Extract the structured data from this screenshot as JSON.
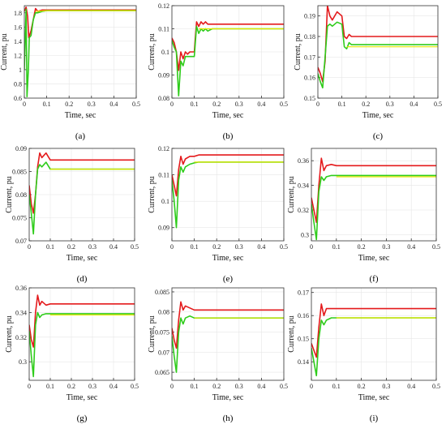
{
  "figure": {
    "panels": [
      {
        "label": "(a)",
        "xlabel": "Time, sec",
        "ylabel": "Current, pu"
      },
      {
        "label": "(b)",
        "xlabel": "Time, sec",
        "ylabel": "Current, pu"
      },
      {
        "label": "(c)",
        "xlabel": "Time, sec",
        "ylabel": "Current, pu"
      },
      {
        "label": "(d)",
        "xlabel": "Time, sec",
        "ylabel": "Current, pu"
      },
      {
        "label": "(e)",
        "xlabel": "Time, sec",
        "ylabel": "Current, pu"
      },
      {
        "label": "(f)",
        "xlabel": "Time, sec",
        "ylabel": "Current, pu"
      },
      {
        "label": "(g)",
        "xlabel": "Time, sec",
        "ylabel": "Current, pu"
      },
      {
        "label": "(h)",
        "xlabel": "Time, sec",
        "ylabel": "Current, pu"
      },
      {
        "label": "(i)",
        "xlabel": "Time, sec",
        "ylabel": "Current, pu"
      }
    ]
  },
  "colors": {
    "red": "#e41a1c",
    "green": "#2ecc1a",
    "yellow": "#e6e600",
    "axis": "#333333",
    "grid": "#e6e6e6"
  },
  "chart_data": [
    {
      "type": "line",
      "panel": "a",
      "xlabel": "Time, sec",
      "ylabel": "Current, pu",
      "xlim": [
        0,
        0.5
      ],
      "ylim": [
        0.6,
        1.9
      ],
      "xticks": [
        "0",
        "0.1",
        "0.2",
        "0.3",
        "0.4",
        "0.5"
      ],
      "yticks": [
        "0.6",
        "0.8",
        "1",
        "1.2",
        "1.4",
        "1.6",
        "1.8"
      ],
      "series": [
        {
          "color": "red",
          "x": [
            0,
            0.008,
            0.015,
            0.02,
            0.03,
            0.04,
            0.05,
            0.06,
            0.08,
            0.1,
            0.12,
            0.15,
            0.5
          ],
          "y": [
            1.82,
            1.88,
            1.75,
            1.45,
            1.55,
            1.7,
            1.86,
            1.82,
            1.84,
            1.84,
            1.84,
            1.84,
            1.84
          ]
        },
        {
          "color": "green",
          "x": [
            0,
            0.008,
            0.012,
            0.018,
            0.022,
            0.03,
            0.04,
            0.05,
            0.06,
            0.08,
            0.1,
            0.15,
            0.5
          ],
          "y": [
            1.0,
            1.85,
            0.62,
            1.0,
            1.45,
            1.48,
            1.7,
            1.8,
            1.8,
            1.82,
            1.83,
            1.83,
            1.83
          ]
        },
        {
          "color": "yellow",
          "x": [
            0.05,
            0.1,
            0.2,
            0.3,
            0.4,
            0.5
          ],
          "y": [
            1.82,
            1.83,
            1.83,
            1.83,
            1.83,
            1.83
          ]
        }
      ]
    },
    {
      "type": "line",
      "panel": "b",
      "xlabel": "Time, sec",
      "ylabel": "Current, pu",
      "xlim": [
        0,
        0.5
      ],
      "ylim": [
        0.08,
        0.12
      ],
      "xticks": [
        "0",
        "0.1",
        "0.2",
        "0.3",
        "0.4",
        "0.5"
      ],
      "yticks": [
        "0.08",
        "0.09",
        "0.1",
        "0.11",
        "0.12"
      ],
      "series": [
        {
          "color": "red",
          "x": [
            0,
            0.01,
            0.02,
            0.03,
            0.04,
            0.05,
            0.06,
            0.07,
            0.08,
            0.1,
            0.11,
            0.12,
            0.13,
            0.14,
            0.15,
            0.16,
            0.18,
            0.2,
            0.5
          ],
          "y": [
            0.106,
            0.104,
            0.1,
            0.092,
            0.1,
            0.097,
            0.1,
            0.099,
            0.1,
            0.1,
            0.113,
            0.111,
            0.113,
            0.112,
            0.113,
            0.112,
            0.112,
            0.112,
            0.112
          ]
        },
        {
          "color": "green",
          "x": [
            0,
            0.01,
            0.02,
            0.03,
            0.04,
            0.05,
            0.06,
            0.08,
            0.1,
            0.11,
            0.12,
            0.13,
            0.14,
            0.15,
            0.16,
            0.18,
            0.2,
            0.5
          ],
          "y": [
            0.105,
            0.102,
            0.1,
            0.081,
            0.096,
            0.094,
            0.098,
            0.098,
            0.098,
            0.111,
            0.108,
            0.11,
            0.109,
            0.11,
            0.109,
            0.11,
            0.11,
            0.11
          ]
        },
        {
          "color": "yellow",
          "x": [
            0.12,
            0.2,
            0.3,
            0.4,
            0.5
          ],
          "y": [
            0.11,
            0.11,
            0.11,
            0.11,
            0.11
          ]
        }
      ]
    },
    {
      "type": "line",
      "panel": "c",
      "xlabel": "Time, sec",
      "ylabel": "Current, pu",
      "xlim": [
        0,
        0.5
      ],
      "ylim": [
        0.15,
        0.195
      ],
      "xticks": [
        "0",
        "0.1",
        "0.2",
        "0.3",
        "0.4",
        "0.5"
      ],
      "yticks": [
        "0.15",
        "0.16",
        "0.17",
        "0.18",
        "0.19"
      ],
      "series": [
        {
          "color": "red",
          "x": [
            0,
            0.01,
            0.02,
            0.03,
            0.04,
            0.05,
            0.06,
            0.08,
            0.1,
            0.11,
            0.12,
            0.13,
            0.14,
            0.16,
            0.2,
            0.5
          ],
          "y": [
            0.165,
            0.162,
            0.158,
            0.168,
            0.195,
            0.19,
            0.188,
            0.192,
            0.19,
            0.18,
            0.179,
            0.181,
            0.18,
            0.18,
            0.18,
            0.18
          ]
        },
        {
          "color": "green",
          "x": [
            0,
            0.01,
            0.02,
            0.03,
            0.04,
            0.05,
            0.06,
            0.08,
            0.1,
            0.11,
            0.12,
            0.13,
            0.14,
            0.16,
            0.2,
            0.5
          ],
          "y": [
            0.162,
            0.158,
            0.155,
            0.17,
            0.185,
            0.186,
            0.185,
            0.187,
            0.186,
            0.175,
            0.174,
            0.177,
            0.176,
            0.176,
            0.176,
            0.176
          ]
        },
        {
          "color": "yellow",
          "x": [
            0.12,
            0.2,
            0.3,
            0.4,
            0.5
          ],
          "y": [
            0.175,
            0.175,
            0.175,
            0.175,
            0.175
          ]
        }
      ]
    },
    {
      "type": "line",
      "panel": "d",
      "xlabel": "Time, sec",
      "ylabel": "Current, pu",
      "xlim": [
        0,
        0.5
      ],
      "ylim": [
        0.07,
        0.09
      ],
      "xticks": [
        "0",
        "0.1",
        "0.2",
        "0.3",
        "0.4",
        "0.5"
      ],
      "yticks": [
        "0.07",
        "0.075",
        "0.08",
        "0.085",
        "0.09"
      ],
      "series": [
        {
          "color": "red",
          "x": [
            0,
            0.01,
            0.02,
            0.03,
            0.04,
            0.05,
            0.06,
            0.08,
            0.1,
            0.12,
            0.15,
            0.5
          ],
          "y": [
            0.082,
            0.078,
            0.076,
            0.08,
            0.086,
            0.089,
            0.088,
            0.089,
            0.0875,
            0.0875,
            0.0875,
            0.0875
          ]
        },
        {
          "color": "green",
          "x": [
            0,
            0.01,
            0.02,
            0.03,
            0.04,
            0.05,
            0.06,
            0.08,
            0.1,
            0.12,
            0.15,
            0.5
          ],
          "y": [
            0.08,
            0.076,
            0.0715,
            0.08,
            0.0855,
            0.0865,
            0.086,
            0.087,
            0.0855,
            0.0855,
            0.0855,
            0.0855
          ]
        },
        {
          "color": "yellow",
          "x": [
            0.1,
            0.2,
            0.3,
            0.4,
            0.5
          ],
          "y": [
            0.0855,
            0.0855,
            0.0855,
            0.0855,
            0.0855
          ]
        }
      ]
    },
    {
      "type": "line",
      "panel": "e",
      "xlabel": "Time, sec",
      "ylabel": "Current, pu",
      "xlim": [
        0,
        0.5
      ],
      "ylim": [
        0.085,
        0.12
      ],
      "xticks": [
        "0",
        "0.1",
        "0.2",
        "0.3",
        "0.4",
        "0.5"
      ],
      "yticks": [
        "0.09",
        "0.1",
        "0.11",
        "0.12"
      ],
      "series": [
        {
          "color": "red",
          "x": [
            0,
            0.01,
            0.02,
            0.03,
            0.04,
            0.05,
            0.06,
            0.08,
            0.1,
            0.12,
            0.15,
            0.5
          ],
          "y": [
            0.11,
            0.106,
            0.102,
            0.112,
            0.117,
            0.114,
            0.116,
            0.117,
            0.117,
            0.1175,
            0.1175,
            0.1175
          ]
        },
        {
          "color": "green",
          "x": [
            0,
            0.01,
            0.02,
            0.03,
            0.04,
            0.05,
            0.06,
            0.08,
            0.1,
            0.12,
            0.15,
            0.5
          ],
          "y": [
            0.108,
            0.1,
            0.09,
            0.108,
            0.113,
            0.111,
            0.113,
            0.114,
            0.1145,
            0.1148,
            0.1148,
            0.1148
          ]
        },
        {
          "color": "yellow",
          "x": [
            0.1,
            0.2,
            0.3,
            0.4,
            0.5
          ],
          "y": [
            0.1148,
            0.1148,
            0.1148,
            0.1148,
            0.1148
          ]
        }
      ]
    },
    {
      "type": "line",
      "panel": "f",
      "xlabel": "Time, sec",
      "ylabel": "Current, pu",
      "xlim": [
        0,
        0.5
      ],
      "ylim": [
        0.295,
        0.37
      ],
      "xticks": [
        "0",
        "0.1",
        "0.2",
        "0.3",
        "0.4",
        "0.5"
      ],
      "yticks": [
        "0.3",
        "0.32",
        "0.34",
        "0.36"
      ],
      "series": [
        {
          "color": "red",
          "x": [
            0,
            0.01,
            0.02,
            0.03,
            0.04,
            0.05,
            0.06,
            0.08,
            0.1,
            0.12,
            0.15,
            0.5
          ],
          "y": [
            0.33,
            0.32,
            0.31,
            0.34,
            0.362,
            0.352,
            0.356,
            0.357,
            0.356,
            0.356,
            0.356,
            0.356
          ]
        },
        {
          "color": "green",
          "x": [
            0,
            0.01,
            0.02,
            0.03,
            0.04,
            0.05,
            0.06,
            0.08,
            0.1,
            0.12,
            0.15,
            0.5
          ],
          "y": [
            0.325,
            0.31,
            0.296,
            0.335,
            0.347,
            0.344,
            0.347,
            0.348,
            0.348,
            0.348,
            0.348,
            0.348
          ]
        },
        {
          "color": "yellow",
          "x": [
            0.1,
            0.2,
            0.3,
            0.4,
            0.5
          ],
          "y": [
            0.347,
            0.347,
            0.347,
            0.347,
            0.347
          ]
        }
      ]
    },
    {
      "type": "line",
      "panel": "g",
      "xlabel": "Time, sec",
      "ylabel": "Current, pu",
      "xlim": [
        0,
        0.5
      ],
      "ylim": [
        0.285,
        0.36
      ],
      "xticks": [
        "0",
        "0.1",
        "0.2",
        "0.3",
        "0.4",
        "0.5"
      ],
      "yticks": [
        "0.3",
        "0.32",
        "0.34",
        "0.36"
      ],
      "series": [
        {
          "color": "red",
          "x": [
            0,
            0.01,
            0.02,
            0.03,
            0.04,
            0.05,
            0.06,
            0.08,
            0.1,
            0.12,
            0.15,
            0.5
          ],
          "y": [
            0.33,
            0.318,
            0.312,
            0.34,
            0.354,
            0.346,
            0.349,
            0.346,
            0.347,
            0.347,
            0.347,
            0.347
          ]
        },
        {
          "color": "green",
          "x": [
            0,
            0.01,
            0.02,
            0.03,
            0.04,
            0.05,
            0.06,
            0.08,
            0.1,
            0.12,
            0.15,
            0.5
          ],
          "y": [
            0.325,
            0.305,
            0.288,
            0.33,
            0.34,
            0.336,
            0.338,
            0.339,
            0.339,
            0.339,
            0.339,
            0.339
          ]
        },
        {
          "color": "yellow",
          "x": [
            0.1,
            0.2,
            0.3,
            0.4,
            0.5
          ],
          "y": [
            0.338,
            0.338,
            0.338,
            0.338,
            0.338
          ]
        }
      ]
    },
    {
      "type": "line",
      "panel": "h",
      "xlabel": "Time, sec",
      "ylabel": "Current, pu",
      "xlim": [
        0,
        0.5
      ],
      "ylim": [
        0.063,
        0.086
      ],
      "xticks": [
        "0",
        "0.1",
        "0.2",
        "0.3",
        "0.4",
        "0.5"
      ],
      "yticks": [
        "0.065",
        "0.07",
        "0.075",
        "0.08",
        "0.085"
      ],
      "series": [
        {
          "color": "red",
          "x": [
            0,
            0.01,
            0.02,
            0.03,
            0.04,
            0.05,
            0.06,
            0.08,
            0.1,
            0.12,
            0.15,
            0.5
          ],
          "y": [
            0.076,
            0.073,
            0.071,
            0.078,
            0.0825,
            0.0805,
            0.0815,
            0.081,
            0.0805,
            0.0805,
            0.0805,
            0.0805
          ]
        },
        {
          "color": "green",
          "x": [
            0,
            0.01,
            0.02,
            0.03,
            0.04,
            0.05,
            0.06,
            0.08,
            0.1,
            0.12,
            0.15,
            0.5
          ],
          "y": [
            0.074,
            0.069,
            0.065,
            0.075,
            0.0785,
            0.077,
            0.0785,
            0.079,
            0.0785,
            0.0785,
            0.0785,
            0.0785
          ]
        },
        {
          "color": "yellow",
          "x": [
            0.1,
            0.2,
            0.3,
            0.4,
            0.5
          ],
          "y": [
            0.0785,
            0.0785,
            0.0785,
            0.0785,
            0.0785
          ]
        }
      ]
    },
    {
      "type": "line",
      "panel": "i",
      "xlabel": "Time, sec",
      "ylabel": "Current, pu",
      "xlim": [
        0,
        0.5
      ],
      "ylim": [
        0.132,
        0.172
      ],
      "xticks": [
        "0",
        "0.1",
        "0.2",
        "0.3",
        "0.4",
        "0.5"
      ],
      "yticks": [
        "0.14",
        "0.15",
        "0.16",
        "0.17"
      ],
      "series": [
        {
          "color": "red",
          "x": [
            0,
            0.01,
            0.02,
            0.03,
            0.04,
            0.05,
            0.06,
            0.08,
            0.1,
            0.12,
            0.15,
            0.5
          ],
          "y": [
            0.148,
            0.145,
            0.142,
            0.155,
            0.165,
            0.16,
            0.163,
            0.163,
            0.163,
            0.163,
            0.163,
            0.163
          ]
        },
        {
          "color": "green",
          "x": [
            0,
            0.01,
            0.02,
            0.03,
            0.04,
            0.05,
            0.06,
            0.08,
            0.1,
            0.12,
            0.15,
            0.5
          ],
          "y": [
            0.146,
            0.14,
            0.134,
            0.15,
            0.158,
            0.156,
            0.158,
            0.159,
            0.159,
            0.159,
            0.159,
            0.159
          ]
        },
        {
          "color": "yellow",
          "x": [
            0.1,
            0.2,
            0.3,
            0.4,
            0.5
          ],
          "y": [
            0.159,
            0.159,
            0.159,
            0.159,
            0.159
          ]
        }
      ]
    }
  ]
}
